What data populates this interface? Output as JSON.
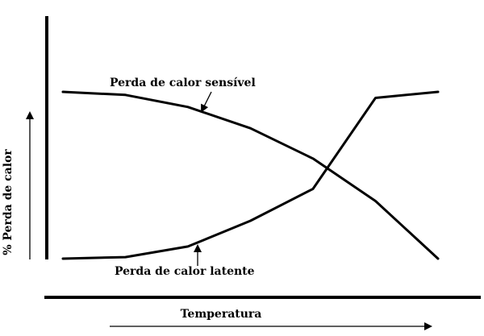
{
  "chart_data": {
    "type": "line",
    "xlabel": "Temperatura",
    "ylabel": "% Perda de calor",
    "x": [
      1,
      2,
      3,
      4,
      5,
      6,
      7
    ],
    "series": [
      {
        "name": "Perda de calor sensível",
        "values": [
          90,
          88,
          80,
          66,
          46,
          18,
          -20
        ]
      },
      {
        "name": "Perda de calor latente",
        "values": [
          -20,
          -19,
          -12,
          5,
          26,
          86,
          90
        ]
      }
    ],
    "grid": false,
    "legend": "inline labels with arrows",
    "line_color": "#000000"
  }
}
